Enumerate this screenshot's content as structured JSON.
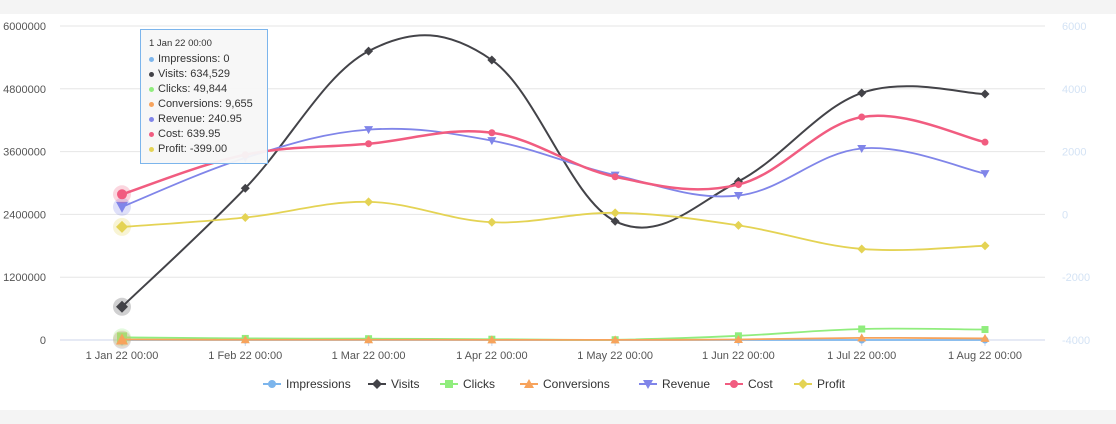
{
  "chart_data": {
    "type": "line",
    "categories": [
      "1 Jan 22 00:00",
      "1 Feb 22 00:00",
      "1 Mar 22 00:00",
      "1 Apr 22 00:00",
      "1 May 22 00:00",
      "1 Jun 22 00:00",
      "1 Jul 22 00:00",
      "1 Aug 22 00:00"
    ],
    "y_left": {
      "ylim": [
        0,
        6000000
      ],
      "ticks": [
        "0",
        "1200000",
        "2400000",
        "3600000",
        "4800000",
        "6000000"
      ]
    },
    "y_right": {
      "ylim": [
        -4000,
        6000
      ],
      "ticks": [
        "-4000",
        "-2000",
        "0",
        "2000",
        "4000",
        "6000"
      ]
    },
    "grid": true,
    "legend_position": "bottom-center",
    "series": [
      {
        "name": "Impressions",
        "axis": "left",
        "color": "#7cb5ec",
        "marker": "circle",
        "values": [
          0,
          0,
          0,
          0,
          0,
          0,
          0,
          0
        ]
      },
      {
        "name": "Visits",
        "axis": "left",
        "color": "#434348",
        "marker": "diamond",
        "values": [
          634529,
          2900000,
          5520000,
          5350000,
          2270000,
          3030000,
          4720000,
          4700000
        ]
      },
      {
        "name": "Clicks",
        "axis": "left",
        "color": "#90ed7d",
        "marker": "square",
        "values": [
          49844,
          30000,
          25000,
          15000,
          5000,
          80000,
          210000,
          200000
        ]
      },
      {
        "name": "Conversions",
        "axis": "left",
        "color": "#f7a35c",
        "marker": "triangle",
        "values": [
          9655,
          5000,
          5000,
          3000,
          2000,
          10000,
          40000,
          30000
        ]
      },
      {
        "name": "Revenue",
        "axis": "right",
        "color": "#8085e9",
        "marker": "triangle-down",
        "values": [
          240.95,
          1800,
          2700,
          2350,
          1250,
          600,
          2100,
          1300
        ]
      },
      {
        "name": "Cost",
        "axis": "right",
        "color": "#f15c80",
        "marker": "circle",
        "values": [
          639.95,
          1900,
          2250,
          2600,
          1200,
          950,
          3100,
          2300
        ]
      },
      {
        "name": "Profit",
        "axis": "right",
        "color": "#e4d354",
        "marker": "diamond",
        "values": [
          -399.0,
          -100,
          400,
          -250,
          50,
          -350,
          -1100,
          -1000
        ]
      }
    ]
  },
  "tooltip": {
    "title": "1 Jan 22 00:00",
    "rows": [
      {
        "name": "Impressions",
        "value": "0",
        "color": "#7cb5ec"
      },
      {
        "name": "Visits",
        "value": "634,529",
        "color": "#434348"
      },
      {
        "name": "Clicks",
        "value": "49,844",
        "color": "#90ed7d"
      },
      {
        "name": "Conversions",
        "value": "9,655",
        "color": "#f7a35c"
      },
      {
        "name": "Revenue",
        "value": "240.95",
        "color": "#8085e9"
      },
      {
        "name": "Cost",
        "value": "639.95",
        "color": "#f15c80"
      },
      {
        "name": "Profit",
        "value": "-399.00",
        "color": "#e4d354"
      }
    ]
  }
}
